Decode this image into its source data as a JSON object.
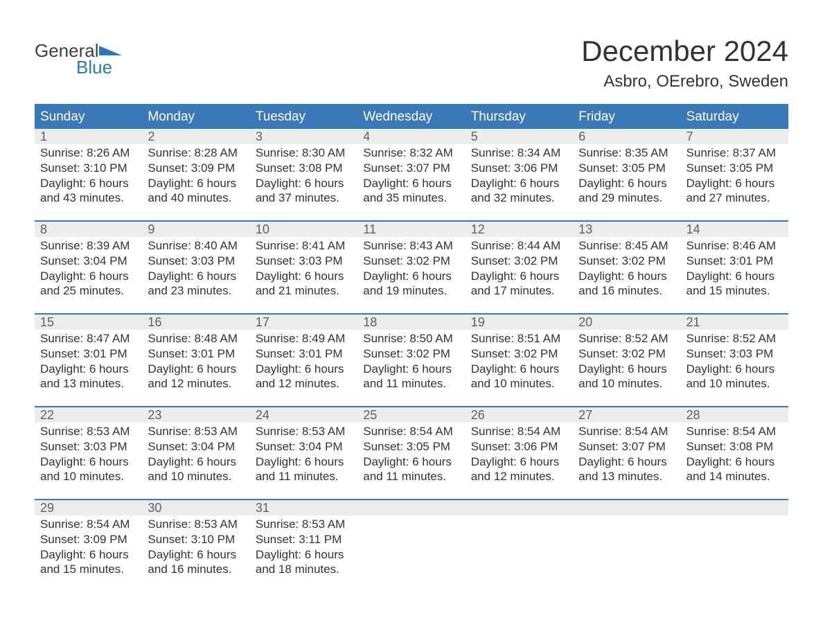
{
  "logo": {
    "text_general": "General",
    "text_blue": "Blue",
    "color_general": "#3f3f3f",
    "color_blue": "#2f76bb",
    "flag_color": "#2f76bb"
  },
  "header": {
    "title": "December 2024",
    "location": "Asbro, OErebro, Sweden"
  },
  "colors": {
    "header_bg": "#3b78b8",
    "header_text": "#ffffff",
    "daynum_bg": "#ececec",
    "daynum_text": "#5f5f5f",
    "body_text": "#333333",
    "week_border": "#3b78b8",
    "background": "#ffffff"
  },
  "day_headers": [
    "Sunday",
    "Monday",
    "Tuesday",
    "Wednesday",
    "Thursday",
    "Friday",
    "Saturday"
  ],
  "weeks": [
    [
      {
        "num": "1",
        "sunrise": "Sunrise: 8:26 AM",
        "sunset": "Sunset: 3:10 PM",
        "day1": "Daylight: 6 hours",
        "day2": "and 43 minutes."
      },
      {
        "num": "2",
        "sunrise": "Sunrise: 8:28 AM",
        "sunset": "Sunset: 3:09 PM",
        "day1": "Daylight: 6 hours",
        "day2": "and 40 minutes."
      },
      {
        "num": "3",
        "sunrise": "Sunrise: 8:30 AM",
        "sunset": "Sunset: 3:08 PM",
        "day1": "Daylight: 6 hours",
        "day2": "and 37 minutes."
      },
      {
        "num": "4",
        "sunrise": "Sunrise: 8:32 AM",
        "sunset": "Sunset: 3:07 PM",
        "day1": "Daylight: 6 hours",
        "day2": "and 35 minutes."
      },
      {
        "num": "5",
        "sunrise": "Sunrise: 8:34 AM",
        "sunset": "Sunset: 3:06 PM",
        "day1": "Daylight: 6 hours",
        "day2": "and 32 minutes."
      },
      {
        "num": "6",
        "sunrise": "Sunrise: 8:35 AM",
        "sunset": "Sunset: 3:05 PM",
        "day1": "Daylight: 6 hours",
        "day2": "and 29 minutes."
      },
      {
        "num": "7",
        "sunrise": "Sunrise: 8:37 AM",
        "sunset": "Sunset: 3:05 PM",
        "day1": "Daylight: 6 hours",
        "day2": "and 27 minutes."
      }
    ],
    [
      {
        "num": "8",
        "sunrise": "Sunrise: 8:39 AM",
        "sunset": "Sunset: 3:04 PM",
        "day1": "Daylight: 6 hours",
        "day2": "and 25 minutes."
      },
      {
        "num": "9",
        "sunrise": "Sunrise: 8:40 AM",
        "sunset": "Sunset: 3:03 PM",
        "day1": "Daylight: 6 hours",
        "day2": "and 23 minutes."
      },
      {
        "num": "10",
        "sunrise": "Sunrise: 8:41 AM",
        "sunset": "Sunset: 3:03 PM",
        "day1": "Daylight: 6 hours",
        "day2": "and 21 minutes."
      },
      {
        "num": "11",
        "sunrise": "Sunrise: 8:43 AM",
        "sunset": "Sunset: 3:02 PM",
        "day1": "Daylight: 6 hours",
        "day2": "and 19 minutes."
      },
      {
        "num": "12",
        "sunrise": "Sunrise: 8:44 AM",
        "sunset": "Sunset: 3:02 PM",
        "day1": "Daylight: 6 hours",
        "day2": "and 17 minutes."
      },
      {
        "num": "13",
        "sunrise": "Sunrise: 8:45 AM",
        "sunset": "Sunset: 3:02 PM",
        "day1": "Daylight: 6 hours",
        "day2": "and 16 minutes."
      },
      {
        "num": "14",
        "sunrise": "Sunrise: 8:46 AM",
        "sunset": "Sunset: 3:01 PM",
        "day1": "Daylight: 6 hours",
        "day2": "and 15 minutes."
      }
    ],
    [
      {
        "num": "15",
        "sunrise": "Sunrise: 8:47 AM",
        "sunset": "Sunset: 3:01 PM",
        "day1": "Daylight: 6 hours",
        "day2": "and 13 minutes."
      },
      {
        "num": "16",
        "sunrise": "Sunrise: 8:48 AM",
        "sunset": "Sunset: 3:01 PM",
        "day1": "Daylight: 6 hours",
        "day2": "and 12 minutes."
      },
      {
        "num": "17",
        "sunrise": "Sunrise: 8:49 AM",
        "sunset": "Sunset: 3:01 PM",
        "day1": "Daylight: 6 hours",
        "day2": "and 12 minutes."
      },
      {
        "num": "18",
        "sunrise": "Sunrise: 8:50 AM",
        "sunset": "Sunset: 3:02 PM",
        "day1": "Daylight: 6 hours",
        "day2": "and 11 minutes."
      },
      {
        "num": "19",
        "sunrise": "Sunrise: 8:51 AM",
        "sunset": "Sunset: 3:02 PM",
        "day1": "Daylight: 6 hours",
        "day2": "and 10 minutes."
      },
      {
        "num": "20",
        "sunrise": "Sunrise: 8:52 AM",
        "sunset": "Sunset: 3:02 PM",
        "day1": "Daylight: 6 hours",
        "day2": "and 10 minutes."
      },
      {
        "num": "21",
        "sunrise": "Sunrise: 8:52 AM",
        "sunset": "Sunset: 3:03 PM",
        "day1": "Daylight: 6 hours",
        "day2": "and 10 minutes."
      }
    ],
    [
      {
        "num": "22",
        "sunrise": "Sunrise: 8:53 AM",
        "sunset": "Sunset: 3:03 PM",
        "day1": "Daylight: 6 hours",
        "day2": "and 10 minutes."
      },
      {
        "num": "23",
        "sunrise": "Sunrise: 8:53 AM",
        "sunset": "Sunset: 3:04 PM",
        "day1": "Daylight: 6 hours",
        "day2": "and 10 minutes."
      },
      {
        "num": "24",
        "sunrise": "Sunrise: 8:53 AM",
        "sunset": "Sunset: 3:04 PM",
        "day1": "Daylight: 6 hours",
        "day2": "and 11 minutes."
      },
      {
        "num": "25",
        "sunrise": "Sunrise: 8:54 AM",
        "sunset": "Sunset: 3:05 PM",
        "day1": "Daylight: 6 hours",
        "day2": "and 11 minutes."
      },
      {
        "num": "26",
        "sunrise": "Sunrise: 8:54 AM",
        "sunset": "Sunset: 3:06 PM",
        "day1": "Daylight: 6 hours",
        "day2": "and 12 minutes."
      },
      {
        "num": "27",
        "sunrise": "Sunrise: 8:54 AM",
        "sunset": "Sunset: 3:07 PM",
        "day1": "Daylight: 6 hours",
        "day2": "and 13 minutes."
      },
      {
        "num": "28",
        "sunrise": "Sunrise: 8:54 AM",
        "sunset": "Sunset: 3:08 PM",
        "day1": "Daylight: 6 hours",
        "day2": "and 14 minutes."
      }
    ],
    [
      {
        "num": "29",
        "sunrise": "Sunrise: 8:54 AM",
        "sunset": "Sunset: 3:09 PM",
        "day1": "Daylight: 6 hours",
        "day2": "and 15 minutes."
      },
      {
        "num": "30",
        "sunrise": "Sunrise: 8:53 AM",
        "sunset": "Sunset: 3:10 PM",
        "day1": "Daylight: 6 hours",
        "day2": "and 16 minutes."
      },
      {
        "num": "31",
        "sunrise": "Sunrise: 8:53 AM",
        "sunset": "Sunset: 3:11 PM",
        "day1": "Daylight: 6 hours",
        "day2": "and 18 minutes."
      },
      {
        "num": "",
        "sunrise": "",
        "sunset": "",
        "day1": "",
        "day2": ""
      },
      {
        "num": "",
        "sunrise": "",
        "sunset": "",
        "day1": "",
        "day2": ""
      },
      {
        "num": "",
        "sunrise": "",
        "sunset": "",
        "day1": "",
        "day2": ""
      },
      {
        "num": "",
        "sunrise": "",
        "sunset": "",
        "day1": "",
        "day2": ""
      }
    ]
  ]
}
